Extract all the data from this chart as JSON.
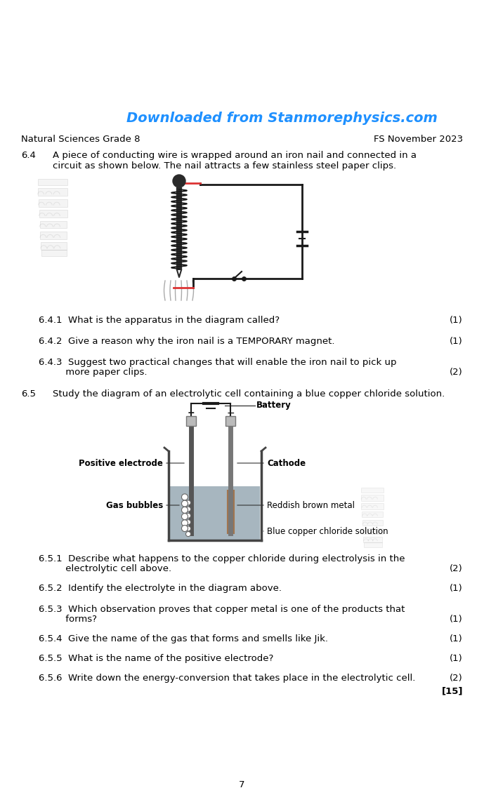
{
  "title_text": "Downloaded from Stanmorephysics.com",
  "title_color": "#1E90FF",
  "header_left": "Natural Sciences Grade 8",
  "header_right": "FS November 2023",
  "bg_color": "#ffffff",
  "text_color": "#000000",
  "gray_text": "#444444",
  "page_number": "7",
  "q6_4_label": "6.4",
  "q6_4_text_line1": "A piece of conducting wire is wrapped around an iron nail and connected in a",
  "q6_4_text_line2": "circuit as shown below. The nail attracts a few stainless steel paper clips.",
  "q6_4_1": "6.4.1  What is the apparatus in the diagram called?",
  "q6_4_1_marks": "(1)",
  "q6_4_2": "6.4.2  Give a reason why the iron nail is a TEMPORARY magnet.",
  "q6_4_2_marks": "(1)",
  "q6_4_3_line1": "6.4.3  Suggest two practical changes that will enable the iron nail to pick up",
  "q6_4_3_line2": "         more paper clips.",
  "q6_4_3_marks": "(2)",
  "q6_5_label": "6.5",
  "q6_5_text": "Study the diagram of an electrolytic cell containing a blue copper chloride solution.",
  "label_battery": "Battery",
  "label_pos_electrode": "Positive electrode",
  "label_cathode": "Cathode",
  "label_gas_bubbles": "Gas bubbles",
  "label_reddish": "Reddish brown metal",
  "label_blue_sol": "Blue copper chloride solution",
  "q6_5_1_line1": "6.5.1  Describe what happens to the copper chloride during electrolysis in the",
  "q6_5_1_line2": "         electrolytic cell above.",
  "q6_5_1_marks": "(2)",
  "q6_5_2": "6.5.2  Identify the electrolyte in the diagram above.",
  "q6_5_2_marks": "(1)",
  "q6_5_3_line1": "6.5.3  Which observation proves that copper metal is one of the products that",
  "q6_5_3_line2": "         forms?",
  "q6_5_3_marks": "(1)",
  "q6_5_4": "6.5.4  Give the name of the gas that forms and smells like Jik.",
  "q6_5_4_marks": "(1)",
  "q6_5_5": "6.5.5  What is the name of the positive electrode?",
  "q6_5_5_marks": "(1)",
  "q6_5_6": "6.5.6  Write down the energy-conversion that takes place in the electrolytic cell.",
  "q6_5_6_marks": "(2)",
  "total_marks": "[15]"
}
